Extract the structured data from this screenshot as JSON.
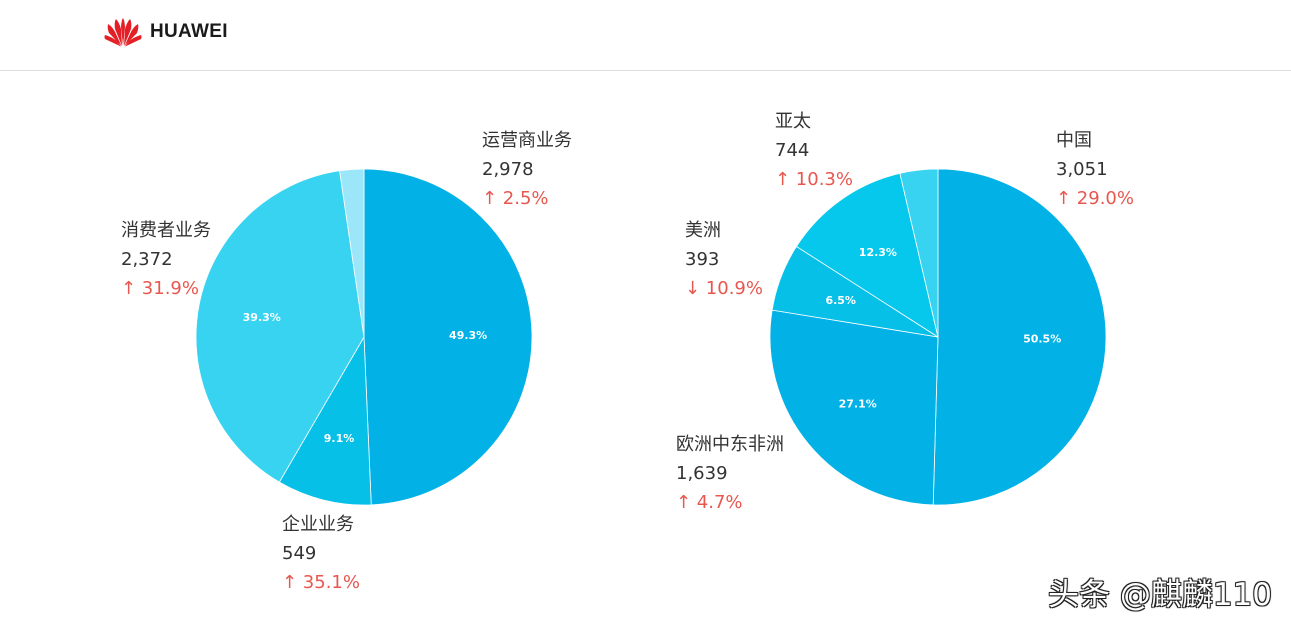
{
  "header": {
    "brand": "HUAWEI"
  },
  "colors": {
    "accent_red": "#e8574f",
    "slice_white_text": "#ffffff"
  },
  "chart_data": [
    {
      "type": "pie",
      "slices": [
        {
          "label": "运营商业务",
          "value": 2978,
          "percent": "49.3%",
          "change": "↑ 2.5%",
          "color": "#02b1e6"
        },
        {
          "label": "企业业务",
          "value": 549,
          "percent": "9.1%",
          "change": "↑ 35.1%",
          "color": "#06c0e8"
        },
        {
          "label": "消费者业务",
          "value": 2372,
          "percent": "39.3%",
          "change": "↑ 31.9%",
          "color": "#37d3f1"
        },
        {
          "label": "",
          "value": 140,
          "percent": "",
          "change": "",
          "color": "#9be6f8"
        }
      ]
    },
    {
      "type": "pie",
      "slices": [
        {
          "label": "中国",
          "value": 3051,
          "percent": "50.5%",
          "change": "↑ 29.0%",
          "color": "#02b1e6"
        },
        {
          "label": "欧洲中东非洲",
          "value": 1639,
          "percent": "27.1%",
          "change": "↑ 4.7%",
          "color": "#02b1e6"
        },
        {
          "label": "美洲",
          "value": 393,
          "percent": "6.5%",
          "change": "↓ 10.9%",
          "color": "#06c0e8"
        },
        {
          "label": "亚太",
          "value": 744,
          "percent": "12.3%",
          "change": "↑ 10.3%",
          "color": "#06c8ec"
        },
        {
          "label": "",
          "value": 220,
          "percent": "",
          "change": "",
          "color": "#37d3f1"
        }
      ]
    }
  ],
  "watermark": "头条 @麒麟110"
}
